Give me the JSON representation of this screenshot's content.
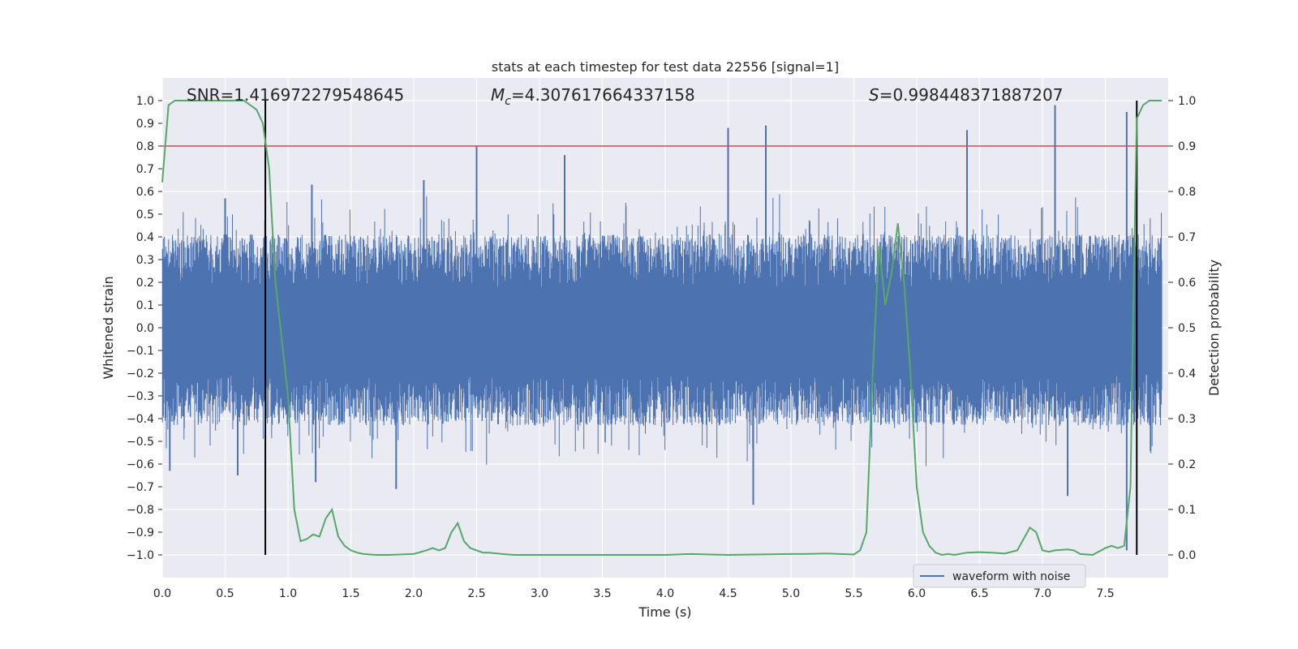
{
  "chart_data": {
    "type": "line",
    "title": "stats at each timestep for test data 22556 [signal=1]",
    "xlabel": "Time (s)",
    "ylabel_left": "Whitened strain",
    "ylabel_right": "Detection probability",
    "xlim": [
      0.0,
      8.0
    ],
    "ylim_left": [
      -1.1,
      1.1
    ],
    "ylim_right": [
      -0.05,
      1.05
    ],
    "x_ticks": [
      "0.0",
      "0.5",
      "1.0",
      "1.5",
      "2.0",
      "2.5",
      "3.0",
      "3.5",
      "4.0",
      "4.5",
      "5.0",
      "5.5",
      "6.0",
      "6.5",
      "7.0",
      "7.5"
    ],
    "y_ticks_left": [
      "1.0",
      "0.9",
      "0.8",
      "0.7",
      "0.6",
      "0.5",
      "0.4",
      "0.3",
      "0.2",
      "0.1",
      "0.0",
      "−0.1",
      "−0.2",
      "−0.3",
      "−0.4",
      "−0.5",
      "−0.6",
      "−0.7",
      "−0.8",
      "−0.9",
      "−1.0"
    ],
    "y_ticks_right": [
      "1.0",
      "0.9",
      "0.8",
      "0.7",
      "0.6",
      "0.5",
      "0.4",
      "0.3",
      "0.2",
      "0.1",
      "0.0"
    ],
    "grid": true,
    "annotations": {
      "snr": "SNR=1.416972279548645",
      "mc_symbol": "M",
      "mc_sub": "c",
      "mc_value": "=4.307617664337158",
      "s_symbol": "S",
      "s_value": "=0.998448371887207"
    },
    "threshold_right": 0.9,
    "vlines_x": [
      0.82,
      7.75
    ],
    "series": [
      {
        "name": "waveform with noise",
        "axis": "left",
        "style": "noise",
        "color": "#4c72b0",
        "envelope_typical": 0.42,
        "peaks": [
          [
            0.06,
            -0.63
          ],
          [
            0.5,
            0.57
          ],
          [
            0.6,
            -0.65
          ],
          [
            1.19,
            0.63
          ],
          [
            1.22,
            -0.68
          ],
          [
            1.86,
            -0.71
          ],
          [
            2.08,
            0.65
          ],
          [
            2.5,
            0.8
          ],
          [
            3.2,
            0.76
          ],
          [
            4.5,
            0.88
          ],
          [
            4.7,
            -0.78
          ],
          [
            4.8,
            0.89
          ],
          [
            6.4,
            0.87
          ],
          [
            7.1,
            0.98
          ],
          [
            7.2,
            -0.74
          ],
          [
            7.67,
            0.95
          ],
          [
            7.67,
            -0.98
          ]
        ]
      },
      {
        "name": "detection probability",
        "axis": "right",
        "style": "line",
        "color": "#55a868",
        "x": [
          0.0,
          0.05,
          0.1,
          0.15,
          0.2,
          0.3,
          0.4,
          0.5,
          0.6,
          0.65,
          0.7,
          0.75,
          0.8,
          0.85,
          0.9,
          1.0,
          1.05,
          1.1,
          1.15,
          1.2,
          1.25,
          1.3,
          1.35,
          1.4,
          1.45,
          1.5,
          1.55,
          1.6,
          1.7,
          1.8,
          2.0,
          2.1,
          2.15,
          2.2,
          2.25,
          2.3,
          2.35,
          2.4,
          2.45,
          2.5,
          2.55,
          2.6,
          2.7,
          2.8,
          2.9,
          3.0,
          3.5,
          4.0,
          4.2,
          4.5,
          5.0,
          5.1,
          5.3,
          5.5,
          5.55,
          5.6,
          5.65,
          5.7,
          5.75,
          5.8,
          5.85,
          5.9,
          5.95,
          6.0,
          6.05,
          6.1,
          6.15,
          6.2,
          6.25,
          6.3,
          6.4,
          6.5,
          6.6,
          6.7,
          6.8,
          6.9,
          6.95,
          7.0,
          7.05,
          7.1,
          7.2,
          7.25,
          7.3,
          7.4,
          7.5,
          7.55,
          7.6,
          7.65,
          7.7,
          7.72,
          7.75,
          7.8,
          7.85,
          7.9,
          7.95
        ],
        "y": [
          0.82,
          0.99,
          1.0,
          1.0,
          1.0,
          1.0,
          1.0,
          1.0,
          1.0,
          1.0,
          0.99,
          0.98,
          0.95,
          0.85,
          0.6,
          0.35,
          0.1,
          0.03,
          0.035,
          0.045,
          0.04,
          0.08,
          0.1,
          0.04,
          0.02,
          0.01,
          0.005,
          0.002,
          0.0,
          0.0,
          0.002,
          0.01,
          0.015,
          0.01,
          0.015,
          0.05,
          0.07,
          0.03,
          0.015,
          0.01,
          0.005,
          0.005,
          0.002,
          0.0,
          0.0,
          0.0,
          0.0,
          0.0,
          0.002,
          0.0,
          0.002,
          0.002,
          0.003,
          0.001,
          0.01,
          0.05,
          0.4,
          0.68,
          0.55,
          0.62,
          0.73,
          0.6,
          0.4,
          0.15,
          0.05,
          0.02,
          0.005,
          0.0,
          0.002,
          0.0,
          0.005,
          0.006,
          0.005,
          0.003,
          0.01,
          0.06,
          0.05,
          0.01,
          0.007,
          0.01,
          0.012,
          0.01,
          0.002,
          0.0,
          0.015,
          0.02,
          0.015,
          0.02,
          0.15,
          0.5,
          0.96,
          0.99,
          1.0,
          1.0,
          1.0
        ]
      }
    ],
    "threshold_color": "#c44e52",
    "legend": {
      "placement": "lower-right",
      "label": "waveform with noise"
    }
  }
}
